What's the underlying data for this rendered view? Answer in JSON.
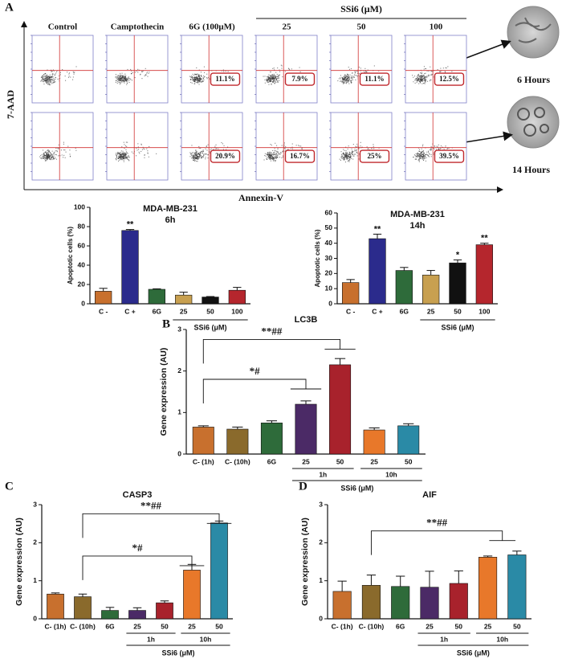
{
  "panels": [
    "A",
    "B",
    "C",
    "D"
  ],
  "flow_cytometry": {
    "x_label": "Annexin-V",
    "y_label": "7-AAD",
    "columns": [
      "Control",
      "Camptothecin",
      "6G (100μM)",
      "25",
      "50",
      "100"
    ],
    "group_label": "SSi6 (μM)",
    "rows": [
      {
        "label": "6 Hours",
        "percentages": [
          null,
          null,
          "11.1%",
          "7.9%",
          "11.1%",
          "12.5%"
        ]
      },
      {
        "label": "14 Hours",
        "percentages": [
          null,
          null,
          "20.9%",
          "16.7%",
          "25%",
          "39.5%"
        ]
      }
    ]
  },
  "chart_data": [
    {
      "type": "bar",
      "title": "MDA-MB-231",
      "subtitle": "6h",
      "y_label": "Apoptotic cells (%)",
      "categories": [
        "C -",
        "C +",
        "6G",
        "25",
        "50",
        "100"
      ],
      "values": [
        13,
        76,
        15,
        9,
        7,
        14
      ],
      "errors": [
        3,
        1,
        0.5,
        3,
        0.5,
        3
      ],
      "colors": [
        "#c8702e",
        "#2b2b8c",
        "#2e6b3a",
        "#c8a050",
        "#111111",
        "#b5262d"
      ],
      "significance": [
        null,
        "**",
        null,
        null,
        null,
        null
      ],
      "group_label": "SSi6 (μM)",
      "ylim": [
        0,
        100
      ],
      "yticks": [
        0,
        20,
        40,
        60,
        80,
        100
      ]
    },
    {
      "type": "bar",
      "title": "MDA-MB-231",
      "subtitle": "14h",
      "y_label": "Apoptotic cells (%)",
      "categories": [
        "C -",
        "C +",
        "6G",
        "25",
        "50",
        "100"
      ],
      "values": [
        14,
        43,
        22,
        19,
        27,
        39
      ],
      "errors": [
        2,
        3,
        2,
        3,
        2,
        1
      ],
      "colors": [
        "#c8702e",
        "#2b2b8c",
        "#2e6b3a",
        "#c8a050",
        "#111111",
        "#b5262d"
      ],
      "significance": [
        null,
        "**",
        null,
        null,
        "*",
        "**"
      ],
      "group_label": "SSi6 (μM)",
      "ylim": [
        0,
        60
      ],
      "yticks": [
        0,
        10,
        20,
        30,
        40,
        50,
        60
      ]
    },
    {
      "type": "bar",
      "title": "LC3B",
      "y_label": "Gene expression (AU)",
      "categories": [
        "C- (1h)",
        "C- (10h)",
        "6G",
        "25",
        "50",
        "25",
        "50"
      ],
      "values": [
        0.65,
        0.6,
        0.75,
        1.2,
        2.15,
        0.58,
        0.68
      ],
      "errors": [
        0.03,
        0.05,
        0.05,
        0.08,
        0.15,
        0.05,
        0.05
      ],
      "colors": [
        "#c8702e",
        "#8a6a2c",
        "#2e6b3a",
        "#4b2a66",
        "#a8222c",
        "#e8782a",
        "#2a8aa6"
      ],
      "subgroups": [
        "1h",
        "10h"
      ],
      "group_label": "SSi6 (μM)",
      "annotations": [
        "**##",
        "*#"
      ],
      "ylim": [
        0,
        3
      ],
      "yticks": [
        0,
        1,
        2,
        3
      ]
    },
    {
      "type": "bar",
      "title": "CASP3",
      "y_label": "Gene expression (AU)",
      "categories": [
        "C- (1h)",
        "C- (10h)",
        "6G",
        "25",
        "50",
        "25",
        "50"
      ],
      "values": [
        0.65,
        0.58,
        0.22,
        0.22,
        0.42,
        1.28,
        2.52
      ],
      "errors": [
        0.03,
        0.07,
        0.08,
        0.07,
        0.05,
        0.15,
        0.05
      ],
      "colors": [
        "#c8702e",
        "#8a6a2c",
        "#2e6b3a",
        "#4b2a66",
        "#a8222c",
        "#e8782a",
        "#2a8aa6"
      ],
      "subgroups": [
        "1h",
        "10h"
      ],
      "group_label": "SSi6 (μM)",
      "annotations": [
        "**##",
        "*#"
      ],
      "ylim": [
        0,
        3
      ],
      "yticks": [
        0,
        1,
        2,
        3
      ]
    },
    {
      "type": "bar",
      "title": "AIF",
      "y_label": "Gene expression (AU)",
      "categories": [
        "C- (1h)",
        "C- (10h)",
        "6G",
        "25",
        "50",
        "25",
        "50"
      ],
      "values": [
        0.72,
        0.88,
        0.85,
        0.83,
        0.93,
        1.62,
        1.68
      ],
      "errors": [
        0.27,
        0.27,
        0.27,
        0.42,
        0.33,
        0.03,
        0.1
      ],
      "colors": [
        "#c8702e",
        "#8a6a2c",
        "#2e6b3a",
        "#4b2a66",
        "#a8222c",
        "#e8782a",
        "#2a8aa6"
      ],
      "subgroups": [
        "1h",
        "10h"
      ],
      "group_label": "SSi6 (μM)",
      "annotations": [
        "**##"
      ],
      "ylim": [
        0,
        3
      ],
      "yticks": [
        0,
        1,
        2,
        3
      ]
    }
  ]
}
